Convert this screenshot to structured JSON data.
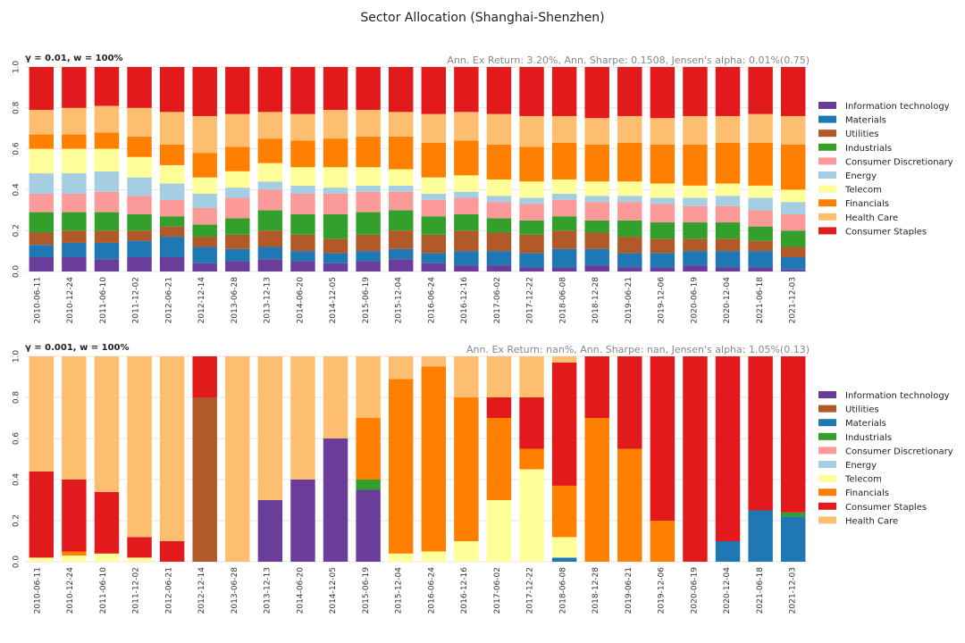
{
  "figure_title": "Sector Allocation (Shanghai-Shenzhen)",
  "chart_data": [
    {
      "type": "bar",
      "stacked": true,
      "panel_label": "γ = 0.01, w = 100%",
      "stats_text": "Ann. Ex Return: 3.20%, Ann. Sharpe: 0.1508, Jensen's alpha: 0.01%(0.75)",
      "ylim": [
        0,
        1.0
      ],
      "yticks": [
        "0.0",
        "0.2",
        "0.4",
        "0.6",
        "0.8",
        "1.0"
      ],
      "xtick_labels": [
        "2010-06-11",
        "2010-12-24",
        "2011-06-10",
        "2011-12-02",
        "2012-06-21",
        "2012-12-14",
        "2013-06-28",
        "2013-12-13",
        "2014-06-20",
        "2014-12-05",
        "2015-06-19",
        "2015-12-04",
        "2016-06-24",
        "2016-12-16",
        "2017-06-02",
        "2017-12-22",
        "2018-06-08",
        "2018-12-28",
        "2019-06-21",
        "2019-12-06",
        "2020-06-19",
        "2020-12-04",
        "2021-06-18",
        "2021-12-03"
      ],
      "legend_position": "right",
      "series": [
        {
          "name": "Information technology",
          "color": "#6a3d9a",
          "values": [
            0.07,
            0.07,
            0.06,
            0.07,
            0.07,
            0.04,
            0.05,
            0.06,
            0.05,
            0.04,
            0.05,
            0.06,
            0.04,
            0.03,
            0.03,
            0.02,
            0.02,
            0.03,
            0.02,
            0.02,
            0.03,
            0.02,
            0.02,
            0.01
          ]
        },
        {
          "name": "Materials",
          "color": "#1f78b4",
          "values": [
            0.06,
            0.07,
            0.08,
            0.08,
            0.1,
            0.08,
            0.06,
            0.06,
            0.05,
            0.05,
            0.05,
            0.05,
            0.05,
            0.07,
            0.07,
            0.07,
            0.09,
            0.08,
            0.07,
            0.07,
            0.07,
            0.08,
            0.08,
            0.06
          ]
        },
        {
          "name": "Utilities",
          "color": "#b15928",
          "values": [
            0.06,
            0.06,
            0.06,
            0.05,
            0.05,
            0.05,
            0.07,
            0.08,
            0.08,
            0.07,
            0.08,
            0.09,
            0.09,
            0.1,
            0.09,
            0.09,
            0.09,
            0.08,
            0.08,
            0.07,
            0.06,
            0.06,
            0.05,
            0.05
          ]
        },
        {
          "name": "Industrials",
          "color": "#33a02c",
          "values": [
            0.1,
            0.09,
            0.09,
            0.08,
            0.05,
            0.06,
            0.08,
            0.1,
            0.1,
            0.12,
            0.11,
            0.1,
            0.09,
            0.08,
            0.07,
            0.07,
            0.07,
            0.06,
            0.08,
            0.08,
            0.08,
            0.08,
            0.07,
            0.08
          ]
        },
        {
          "name": "Consumer Discretionary",
          "color": "#fb9a99",
          "values": [
            0.09,
            0.09,
            0.1,
            0.09,
            0.08,
            0.08,
            0.1,
            0.1,
            0.1,
            0.1,
            0.1,
            0.09,
            0.08,
            0.08,
            0.08,
            0.08,
            0.08,
            0.09,
            0.09,
            0.09,
            0.08,
            0.08,
            0.08,
            0.08
          ]
        },
        {
          "name": "Energy",
          "color": "#a6cee3",
          "values": [
            0.1,
            0.1,
            0.1,
            0.09,
            0.08,
            0.07,
            0.05,
            0.04,
            0.04,
            0.03,
            0.03,
            0.03,
            0.03,
            0.03,
            0.03,
            0.03,
            0.03,
            0.03,
            0.03,
            0.03,
            0.04,
            0.05,
            0.06,
            0.06
          ]
        },
        {
          "name": "Telecom",
          "color": "#ffff99",
          "values": [
            0.12,
            0.12,
            0.11,
            0.1,
            0.09,
            0.08,
            0.08,
            0.09,
            0.09,
            0.1,
            0.09,
            0.08,
            0.08,
            0.08,
            0.08,
            0.08,
            0.07,
            0.07,
            0.07,
            0.07,
            0.06,
            0.06,
            0.06,
            0.06
          ]
        },
        {
          "name": "Financials",
          "color": "#ff7f00",
          "values": [
            0.07,
            0.07,
            0.08,
            0.1,
            0.1,
            0.12,
            0.12,
            0.12,
            0.13,
            0.14,
            0.15,
            0.16,
            0.17,
            0.17,
            0.17,
            0.17,
            0.18,
            0.18,
            0.19,
            0.19,
            0.2,
            0.2,
            0.21,
            0.22
          ]
        },
        {
          "name": "Health Care",
          "color": "#fdbf6f",
          "values": [
            0.12,
            0.13,
            0.13,
            0.14,
            0.16,
            0.18,
            0.16,
            0.13,
            0.13,
            0.14,
            0.13,
            0.12,
            0.14,
            0.14,
            0.15,
            0.15,
            0.13,
            0.13,
            0.13,
            0.13,
            0.14,
            0.13,
            0.14,
            0.14
          ]
        },
        {
          "name": "Consumer Staples",
          "color": "#e31a1c",
          "values": [
            0.21,
            0.2,
            0.19,
            0.2,
            0.22,
            0.24,
            0.23,
            0.22,
            0.23,
            0.21,
            0.21,
            0.22,
            0.23,
            0.22,
            0.23,
            0.24,
            0.24,
            0.25,
            0.24,
            0.25,
            0.24,
            0.24,
            0.23,
            0.24
          ]
        }
      ]
    },
    {
      "type": "bar",
      "stacked": true,
      "panel_label": "γ = 0.001, w = 100%",
      "stats_text": "Ann. Ex Return: nan%, Ann. Sharpe: nan, Jensen's alpha: 1.05%(0.13)",
      "ylim": [
        0,
        1.0
      ],
      "yticks": [
        "0.0",
        "0.2",
        "0.4",
        "0.6",
        "0.8",
        "1.0"
      ],
      "xtick_labels": [
        "2010-06-11",
        "2010-12-24",
        "2011-06-10",
        "2011-12-02",
        "2012-06-21",
        "2012-12-14",
        "2013-06-28",
        "2013-12-13",
        "2014-06-20",
        "2014-12-05",
        "2015-06-19",
        "2015-12-04",
        "2016-06-24",
        "2016-12-16",
        "2017-06-02",
        "2017-12-22",
        "2018-06-08",
        "2018-12-28",
        "2019-06-21",
        "2019-12-06",
        "2020-06-19",
        "2020-12-04",
        "2021-06-18",
        "2021-12-03"
      ],
      "legend_position": "right",
      "series": [
        {
          "name": "Information technology",
          "color": "#6a3d9a",
          "values": [
            0,
            0,
            0,
            0,
            0,
            0,
            0,
            0.3,
            0.4,
            0.6,
            0.35,
            0,
            0,
            0,
            0,
            0,
            0,
            0,
            0,
            0,
            0,
            0,
            0,
            0
          ]
        },
        {
          "name": "Utilities",
          "color": "#b15928",
          "values": [
            0,
            0,
            0,
            0,
            0,
            0.8,
            0,
            0,
            0,
            0,
            0,
            0,
            0,
            0,
            0,
            0,
            0,
            0,
            0,
            0,
            0,
            0,
            0,
            0
          ]
        },
        {
          "name": "Materials",
          "color": "#1f78b4",
          "values": [
            0,
            0,
            0,
            0,
            0,
            0,
            0,
            0,
            0,
            0,
            0,
            0,
            0,
            0,
            0,
            0,
            0.02,
            0,
            0,
            0,
            0,
            0.1,
            0.25,
            0.22
          ]
        },
        {
          "name": "Industrials",
          "color": "#33a02c",
          "values": [
            0,
            0,
            0,
            0,
            0,
            0,
            0,
            0,
            0,
            0,
            0.05,
            0,
            0,
            0,
            0,
            0,
            0,
            0,
            0,
            0,
            0,
            0,
            0,
            0.02
          ]
        },
        {
          "name": "Consumer Discretionary",
          "color": "#fb9a99",
          "values": [
            0,
            0,
            0,
            0,
            0,
            0,
            0,
            0,
            0,
            0,
            0,
            0,
            0,
            0,
            0,
            0,
            0,
            0,
            0,
            0,
            0,
            0,
            0,
            0
          ]
        },
        {
          "name": "Energy",
          "color": "#a6cee3",
          "values": [
            0,
            0,
            0,
            0,
            0,
            0,
            0,
            0,
            0,
            0,
            0,
            0,
            0,
            0,
            0,
            0,
            0,
            0,
            0,
            0,
            0,
            0,
            0,
            0
          ]
        },
        {
          "name": "Telecom",
          "color": "#ffff99",
          "values": [
            0.02,
            0.03,
            0.04,
            0.02,
            0,
            0,
            0,
            0,
            0,
            0,
            0,
            0.04,
            0.05,
            0.1,
            0.3,
            0.45,
            0.1,
            0,
            0,
            0,
            0,
            0,
            0,
            0
          ]
        },
        {
          "name": "Financials",
          "color": "#ff7f00",
          "values": [
            0,
            0.02,
            0,
            0,
            0,
            0,
            0,
            0,
            0,
            0,
            0.3,
            0.85,
            0.9,
            0.7,
            0.4,
            0.1,
            0.25,
            0.7,
            0.55,
            0.2,
            0,
            0,
            0,
            0
          ]
        },
        {
          "name": "Consumer Staples",
          "color": "#e31a1c",
          "values": [
            0.42,
            0.35,
            0.3,
            0.1,
            0.1,
            0.2,
            0,
            0,
            0,
            0,
            0,
            0,
            0,
            0,
            0.1,
            0.25,
            0.6,
            0.3,
            0.45,
            0.8,
            1.0,
            0.9,
            0.75,
            0.76
          ]
        },
        {
          "name": "Health Care",
          "color": "#fdbf6f",
          "values": [
            0.56,
            0.6,
            0.66,
            0.88,
            0.9,
            0,
            1.0,
            0.7,
            0.6,
            0.4,
            0.3,
            0.11,
            0.05,
            0.2,
            0.2,
            0.2,
            0.03,
            0,
            0,
            0,
            0,
            0,
            0,
            0
          ]
        }
      ]
    }
  ]
}
